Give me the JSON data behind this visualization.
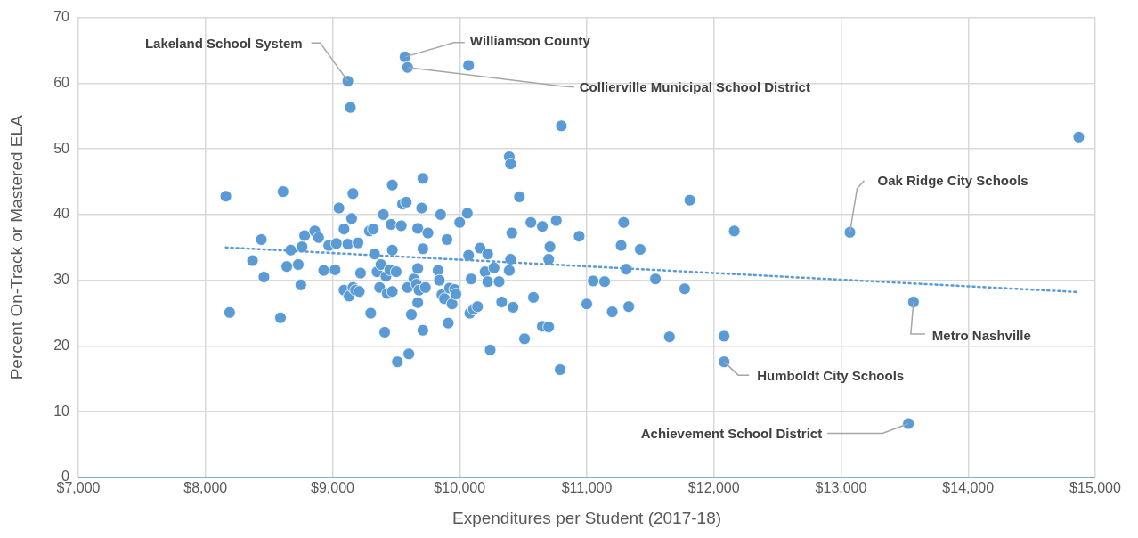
{
  "chart_data": {
    "type": "scatter",
    "xlabel": "Expenditures per Student (2017-18)",
    "ylabel": "Percent On-Track or Mastered ELA",
    "xlim": [
      7000,
      15000
    ],
    "xticks": [
      {
        "value": 7000,
        "label": "$7,000"
      },
      {
        "value": 8000,
        "label": "$8,000"
      },
      {
        "value": 9000,
        "label": "$9,000"
      },
      {
        "value": 10000,
        "label": "$10,000"
      },
      {
        "value": 11000,
        "label": "$11,000"
      },
      {
        "value": 12000,
        "label": "$12,000"
      },
      {
        "value": 13000,
        "label": "$13,000"
      },
      {
        "value": 14000,
        "label": "$14,000"
      },
      {
        "value": 15000,
        "label": "$15,000"
      }
    ],
    "ylim": [
      0,
      70
    ],
    "yticks": [
      0,
      10,
      20,
      30,
      40,
      50,
      60,
      70
    ],
    "grid": true,
    "legend": false,
    "marker": "circle",
    "series": [
      {
        "type": "scatter",
        "color": "#5b9bd5",
        "x": [
          8160,
          8190,
          8370,
          8440,
          8460,
          8590,
          8610,
          8640,
          8670,
          8730,
          8760,
          8750,
          8780,
          8860,
          8890,
          8930,
          8970,
          9020,
          9030,
          9050,
          9090,
          9090,
          9120,
          9120,
          9140,
          9130,
          9150,
          9160,
          9160,
          9180,
          9200,
          9210,
          9220,
          9290,
          9300,
          9320,
          9330,
          9350,
          9370,
          9380,
          9400,
          9410,
          9420,
          9430,
          9450,
          9460,
          9470,
          9470,
          9470,
          9500,
          9510,
          9540,
          9550,
          9570,
          9580,
          9590,
          9590,
          9600,
          9620,
          9640,
          9660,
          9670,
          9670,
          9670,
          9680,
          9700,
          9710,
          9710,
          9710,
          9730,
          9750,
          9830,
          9840,
          9850,
          9860,
          9880,
          9900,
          9910,
          9920,
          9940,
          9960,
          9970,
          10000,
          10060,
          10070,
          10070,
          10080,
          10090,
          10110,
          10140,
          10160,
          10200,
          10220,
          10220,
          10240,
          10270,
          10310,
          10330,
          10390,
          10390,
          10400,
          10400,
          10410,
          10420,
          10470,
          10510,
          10560,
          10580,
          10650,
          10650,
          10700,
          10700,
          10710,
          10760,
          10790,
          10800,
          10940,
          11000,
          11050,
          11140,
          11200,
          11270,
          11290,
          11310,
          11330,
          11420,
          11540,
          11650,
          11770,
          11810,
          12080,
          12080,
          12160,
          13070,
          13530,
          13570,
          14870
        ],
        "values": [
          42.8,
          25.1,
          33.0,
          36.2,
          30.5,
          24.3,
          43.5,
          32.1,
          34.6,
          32.4,
          35.1,
          29.3,
          36.8,
          37.5,
          36.5,
          31.5,
          35.3,
          31.6,
          35.6,
          41.0,
          37.8,
          28.5,
          35.5,
          60.3,
          56.3,
          27.6,
          39.4,
          43.2,
          28.9,
          28.5,
          35.7,
          28.3,
          31.1,
          37.5,
          25.0,
          37.8,
          34.0,
          31.3,
          28.9,
          32.4,
          40.0,
          22.1,
          30.6,
          28.0,
          31.6,
          38.5,
          44.5,
          34.6,
          28.3,
          31.3,
          17.6,
          38.3,
          41.6,
          64.0,
          41.9,
          28.9,
          62.4,
          18.8,
          24.8,
          30.2,
          29.4,
          31.8,
          26.6,
          37.9,
          28.5,
          41.0,
          45.5,
          34.8,
          22.4,
          28.9,
          37.2,
          31.5,
          30.0,
          40.0,
          27.8,
          27.2,
          36.2,
          23.5,
          28.8,
          26.4,
          28.6,
          27.9,
          38.8,
          40.2,
          62.7,
          33.8,
          25.0,
          30.2,
          25.6,
          26.0,
          34.9,
          31.3,
          34.0,
          29.8,
          19.4,
          31.9,
          29.8,
          26.7,
          31.5,
          48.8,
          47.7,
          33.2,
          37.2,
          25.9,
          42.7,
          21.1,
          38.8,
          27.4,
          23.0,
          38.2,
          22.9,
          33.2,
          35.1,
          39.1,
          16.4,
          53.5,
          36.7,
          26.4,
          29.9,
          29.8,
          25.2,
          35.3,
          38.8,
          31.7,
          26.0,
          34.7,
          30.2,
          21.4,
          28.7,
          42.2,
          21.5,
          17.6,
          37.5,
          37.3,
          8.2,
          26.7,
          51.8
        ]
      },
      {
        "type": "line",
        "color": "#5b9bd5",
        "line_style": "dotted",
        "marker": "none",
        "x": [
          8160,
          14870
        ],
        "values": [
          35.0,
          28.2
        ]
      }
    ],
    "annotations": [
      {
        "text": "Lakeland School System",
        "x": 9120,
        "y": 60.3
      },
      {
        "text": "Williamson County",
        "x": 9570,
        "y": 64.0
      },
      {
        "text": "Collierville Municipal School District",
        "x": 9590,
        "y": 62.4
      },
      {
        "text": "Oak Ridge City Schools",
        "x": 13070,
        "y": 37.3
      },
      {
        "text": "Metro Nashville",
        "x": 13570,
        "y": 26.7
      },
      {
        "text": "Humboldt City Schools",
        "x": 12080,
        "y": 17.6
      },
      {
        "text": "Achievement School District",
        "x": 13530,
        "y": 8.2
      }
    ]
  }
}
